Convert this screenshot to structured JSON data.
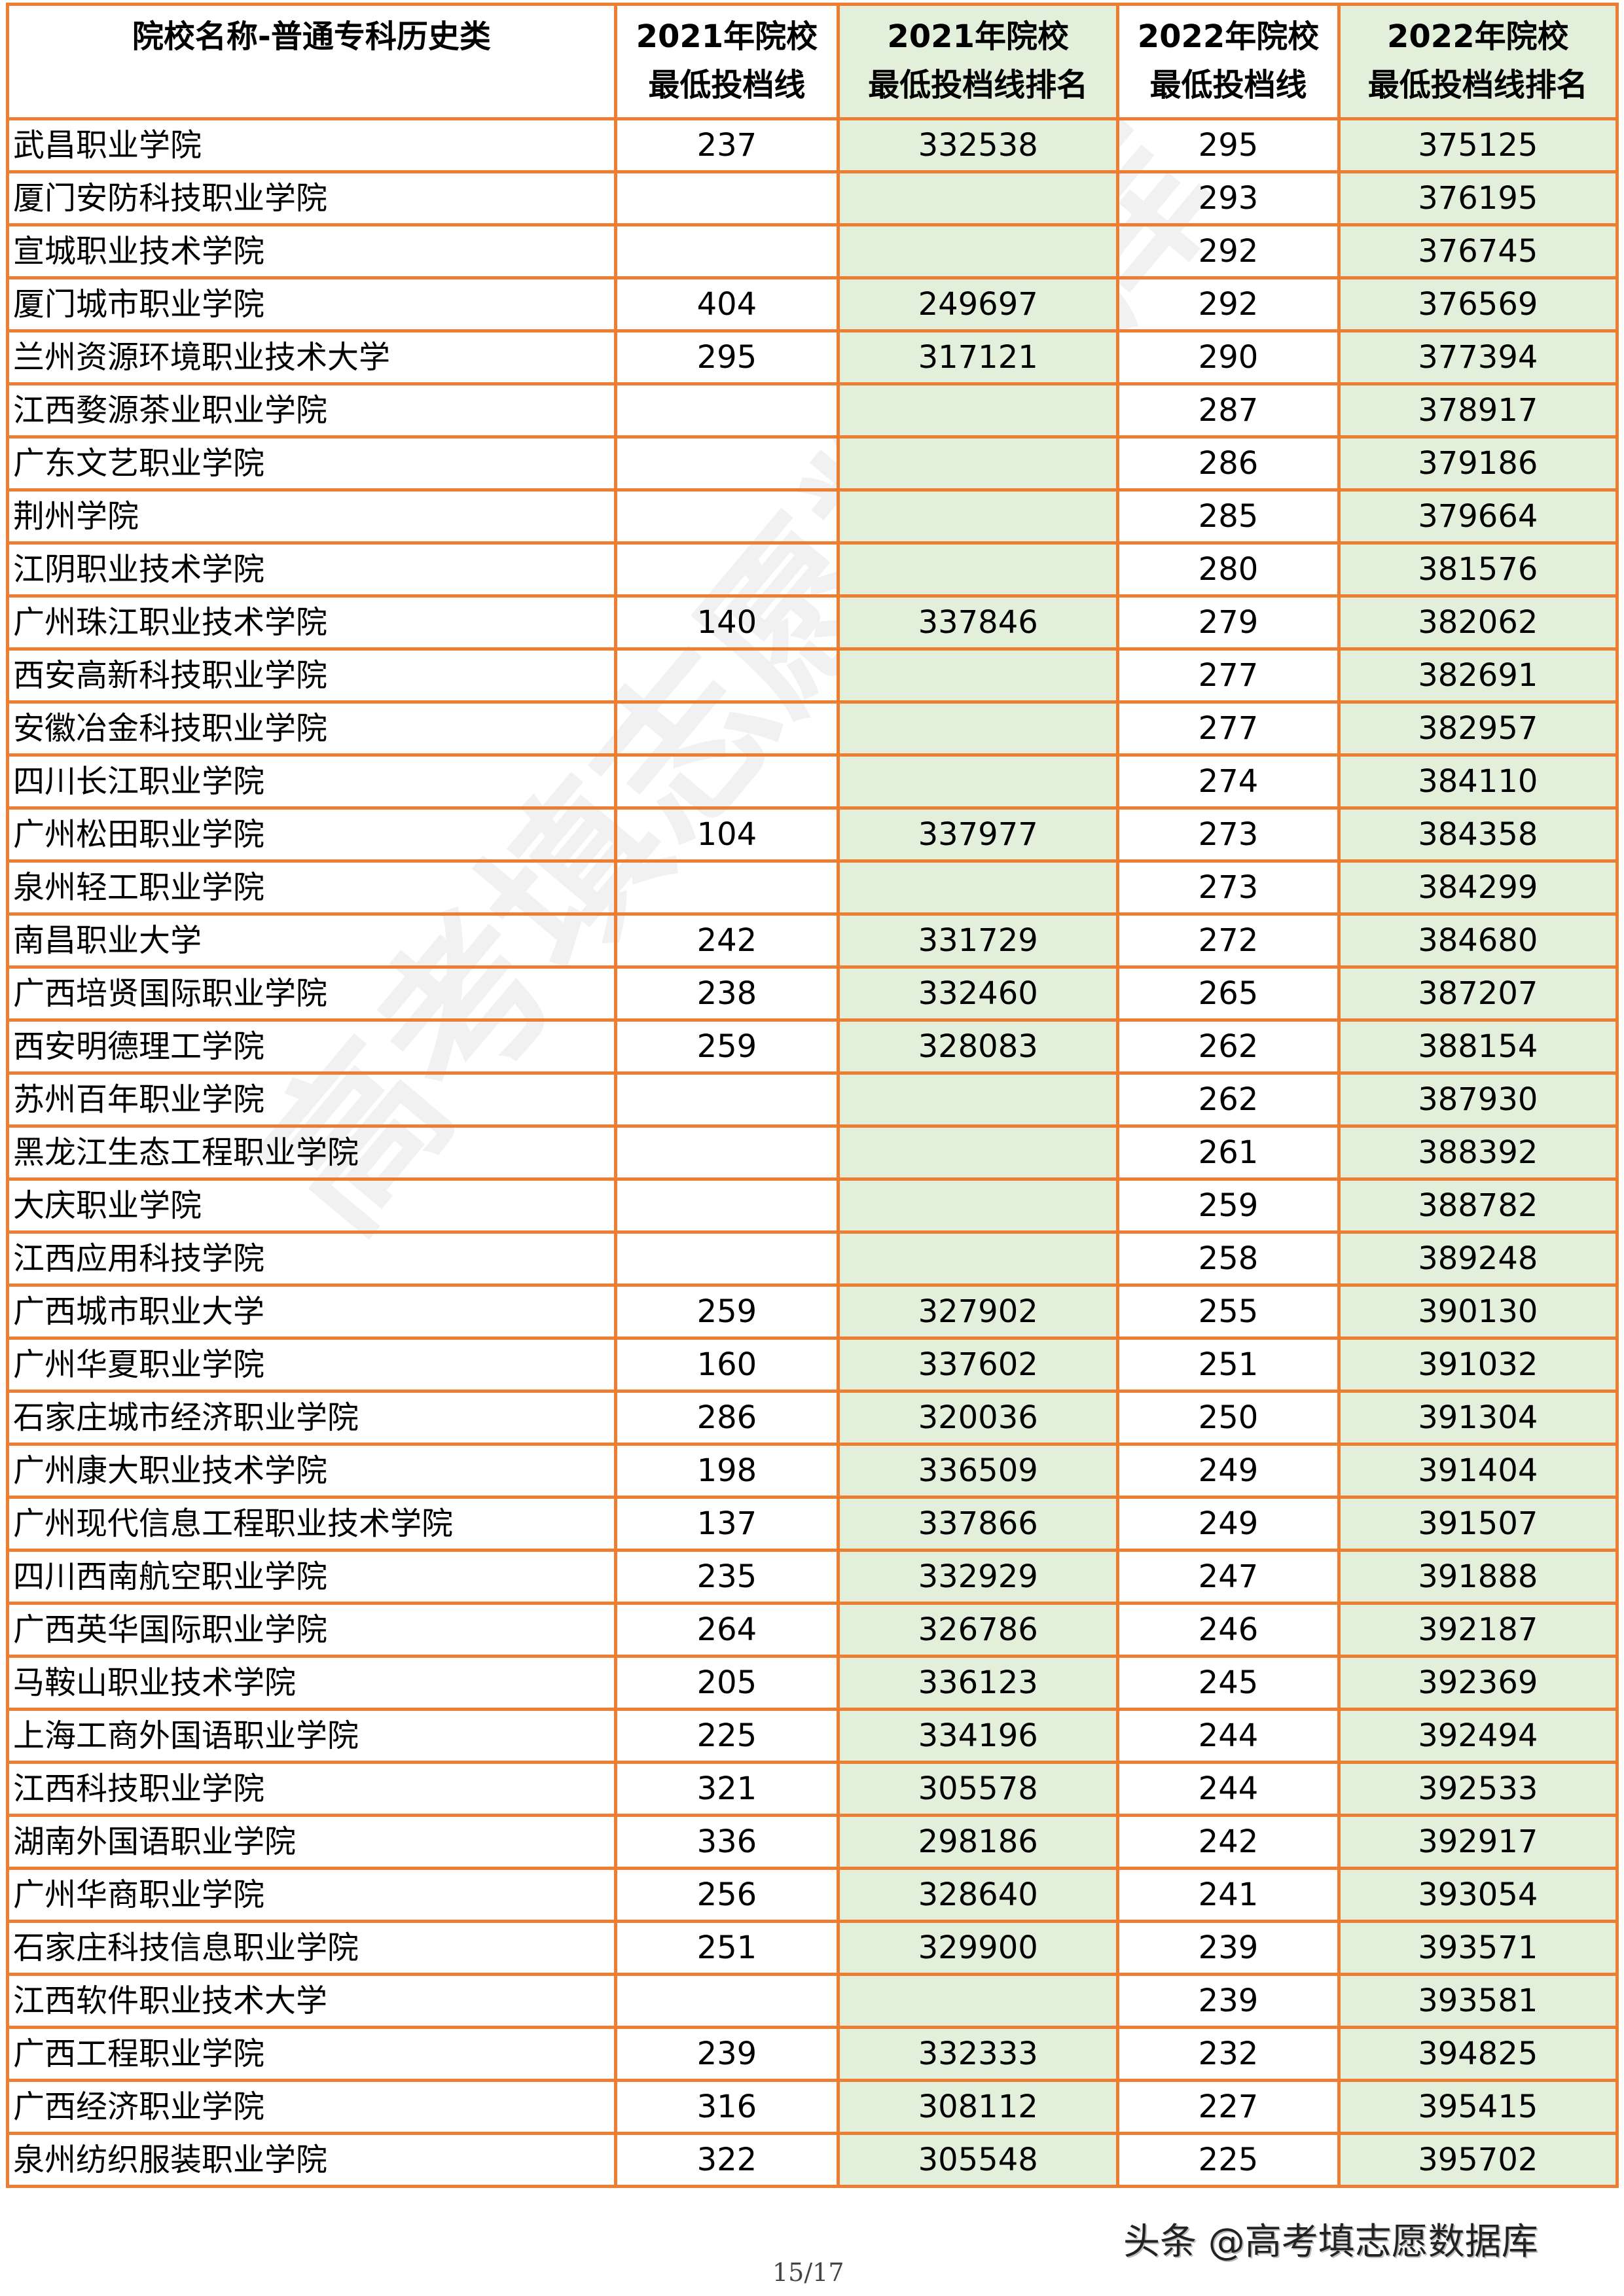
{
  "table": {
    "headers": [
      {
        "line1": "院校名称-普通专科历史类",
        "line2": ""
      },
      {
        "line1": "2021年院校",
        "line2": "最低投档线"
      },
      {
        "line1": "2021年院校",
        "line2": "最低投档线排名"
      },
      {
        "line1": "2022年院校",
        "line2": "最低投档线"
      },
      {
        "line1": "2022年院校",
        "line2": "最低投档线排名"
      }
    ],
    "rows": [
      [
        "武昌职业学院",
        "237",
        "332538",
        "295",
        "375125"
      ],
      [
        "厦门安防科技职业学院",
        "",
        "",
        "293",
        "376195"
      ],
      [
        "宣城职业技术学院",
        "",
        "",
        "292",
        "376745"
      ],
      [
        "厦门城市职业学院",
        "404",
        "249697",
        "292",
        "376569"
      ],
      [
        "兰州资源环境职业技术大学",
        "295",
        "317121",
        "290",
        "377394"
      ],
      [
        "江西婺源茶业职业学院",
        "",
        "",
        "287",
        "378917"
      ],
      [
        "广东文艺职业学院",
        "",
        "",
        "286",
        "379186"
      ],
      [
        "荆州学院",
        "",
        "",
        "285",
        "379664"
      ],
      [
        "江阴职业技术学院",
        "",
        "",
        "280",
        "381576"
      ],
      [
        "广州珠江职业技术学院",
        "140",
        "337846",
        "279",
        "382062"
      ],
      [
        "西安高新科技职业学院",
        "",
        "",
        "277",
        "382691"
      ],
      [
        "安徽冶金科技职业学院",
        "",
        "",
        "277",
        "382957"
      ],
      [
        "四川长江职业学院",
        "",
        "",
        "274",
        "384110"
      ],
      [
        "广州松田职业学院",
        "104",
        "337977",
        "273",
        "384358"
      ],
      [
        "泉州轻工职业学院",
        "",
        "",
        "273",
        "384299"
      ],
      [
        "南昌职业大学",
        "242",
        "331729",
        "272",
        "384680"
      ],
      [
        "广西培贤国际职业学院",
        "238",
        "332460",
        "265",
        "387207"
      ],
      [
        "西安明德理工学院",
        "259",
        "328083",
        "262",
        "388154"
      ],
      [
        "苏州百年职业学院",
        "",
        "",
        "262",
        "387930"
      ],
      [
        "黑龙江生态工程职业学院",
        "",
        "",
        "261",
        "388392"
      ],
      [
        "大庆职业学院",
        "",
        "",
        "259",
        "388782"
      ],
      [
        "江西应用科技学院",
        "",
        "",
        "258",
        "389248"
      ],
      [
        "广西城市职业大学",
        "259",
        "327902",
        "255",
        "390130"
      ],
      [
        "广州华夏职业学院",
        "160",
        "337602",
        "251",
        "391032"
      ],
      [
        "石家庄城市经济职业学院",
        "286",
        "320036",
        "250",
        "391304"
      ],
      [
        "广州康大职业技术学院",
        "198",
        "336509",
        "249",
        "391404"
      ],
      [
        "广州现代信息工程职业技术学院",
        "137",
        "337866",
        "249",
        "391507"
      ],
      [
        "四川西南航空职业学院",
        "235",
        "332929",
        "247",
        "391888"
      ],
      [
        "广西英华国际职业学院",
        "264",
        "326786",
        "246",
        "392187"
      ],
      [
        "马鞍山职业技术学院",
        "205",
        "336123",
        "245",
        "392369"
      ],
      [
        "上海工商外国语职业学院",
        "225",
        "334196",
        "244",
        "392494"
      ],
      [
        "江西科技职业学院",
        "321",
        "305578",
        "244",
        "392533"
      ],
      [
        "湖南外国语职业学院",
        "336",
        "298186",
        "242",
        "392917"
      ],
      [
        "广州华商职业学院",
        "256",
        "328640",
        "241",
        "393054"
      ],
      [
        "石家庄科技信息职业学院",
        "251",
        "329900",
        "239",
        "393571"
      ],
      [
        "江西软件职业技术大学",
        "",
        "",
        "239",
        "393581"
      ],
      [
        "广西工程职业学院",
        "239",
        "332333",
        "232",
        "394825"
      ],
      [
        "广西经济职业学院",
        "316",
        "308112",
        "227",
        "395415"
      ],
      [
        "泉州纺织服装职业学院",
        "322",
        "305548",
        "225",
        "395702"
      ]
    ]
  },
  "watermark": "高考填志愿数据库",
  "footer": {
    "source": "头条 @高考填志愿数据库",
    "page": "15/17"
  },
  "colors": {
    "border": "#ED7D31",
    "rank_column_fill": "#E2EFDA"
  }
}
